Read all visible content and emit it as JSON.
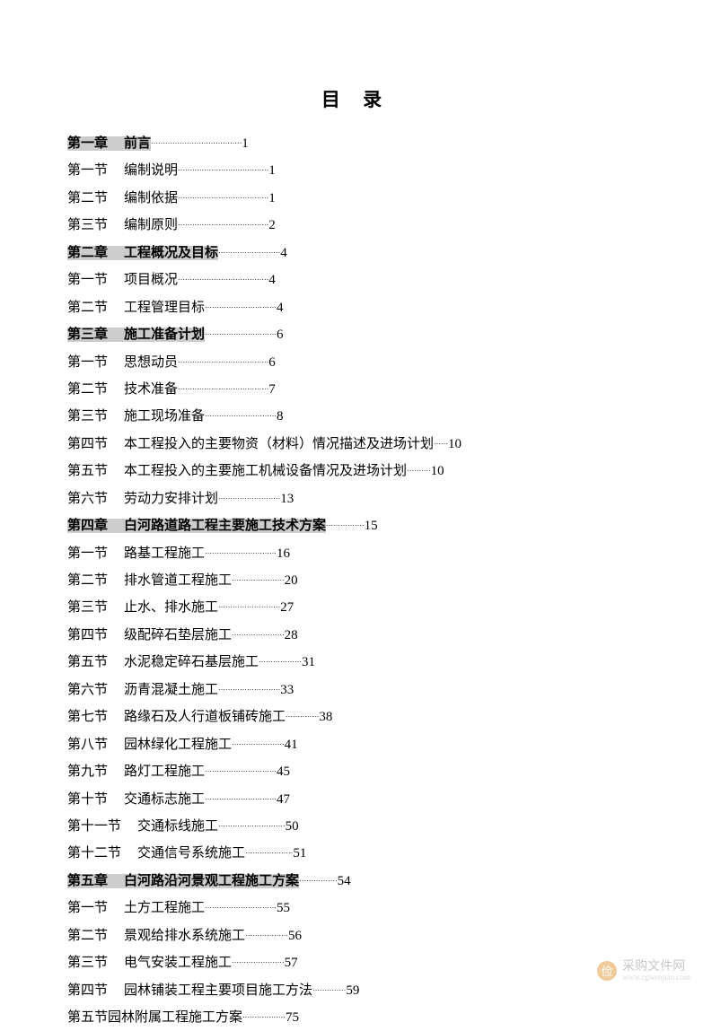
{
  "title": "目 录",
  "colors": {
    "background": "#ffffff",
    "text": "#000000",
    "highlight": "#cccccc",
    "watermark_icon_bg": "#e3a24a",
    "watermark_text": "#9a9a9a"
  },
  "typography": {
    "title_fontsize_pt": 16,
    "body_fontsize_pt": 11,
    "line_height": 2.03,
    "font_family": "SimSun"
  },
  "leader_char": "·",
  "entries": [
    {
      "label": "第一章",
      "title": "前言",
      "page": "1",
      "highlight": true,
      "leader_count": 38,
      "gap_after_label": true
    },
    {
      "label": "第一节",
      "title": "编制说明",
      "page": "1",
      "highlight": false,
      "leader_count": 38,
      "gap_after_label": true
    },
    {
      "label": "第二节",
      "title": "编制依据",
      "page": "1",
      "highlight": false,
      "leader_count": 38,
      "gap_after_label": true
    },
    {
      "label": "第三节",
      "title": "编制原则",
      "page": "2",
      "highlight": false,
      "leader_count": 38,
      "gap_after_label": true
    },
    {
      "label": "第二章",
      "title": "工程概况及目标",
      "page": "4",
      "highlight": true,
      "leader_count": 26,
      "gap_after_label": true
    },
    {
      "label": "第一节",
      "title": "项目概况",
      "page": "4",
      "highlight": false,
      "leader_count": 38,
      "gap_after_label": true
    },
    {
      "label": "第二节",
      "title": "工程管理目标",
      "page": "4",
      "highlight": false,
      "leader_count": 30,
      "gap_after_label": true
    },
    {
      "label": "第三章",
      "title": "施工准备计划",
      "page": "6",
      "highlight": true,
      "leader_count": 30,
      "gap_after_label": true
    },
    {
      "label": "第一节",
      "title": "思想动员",
      "page": "6",
      "highlight": false,
      "leader_count": 38,
      "gap_after_label": true
    },
    {
      "label": "第二节",
      "title": "技术准备",
      "page": "7",
      "highlight": false,
      "leader_count": 38,
      "gap_after_label": true
    },
    {
      "label": "第三节",
      "title": "施工现场准备",
      "page": "8",
      "highlight": false,
      "leader_count": 30,
      "gap_after_label": true
    },
    {
      "label": "第四节",
      "title": "本工程投入的主要物资（材料）情况描述及进场计划",
      "page": "10",
      "highlight": false,
      "leader_count": 6,
      "gap_after_label": true
    },
    {
      "label": "第五节",
      "title": "本工程投入的主要施工机械设备情况及进场计划",
      "page": "10",
      "highlight": false,
      "leader_count": 10,
      "gap_after_label": true
    },
    {
      "label": "第六节",
      "title": "劳动力安排计划",
      "page": "13",
      "highlight": false,
      "leader_count": 26,
      "gap_after_label": true
    },
    {
      "label": "第四章",
      "title": "白河路道路工程主要施工技术方案",
      "page": "15",
      "highlight": true,
      "leader_count": 16,
      "gap_after_label": true
    },
    {
      "label": "第一节",
      "title": "路基工程施工",
      "page": "16",
      "highlight": false,
      "leader_count": 30,
      "gap_after_label": true
    },
    {
      "label": "第二节",
      "title": "排水管道工程施工",
      "page": "20",
      "highlight": false,
      "leader_count": 22,
      "gap_after_label": true
    },
    {
      "label": "第三节",
      "title": "止水、排水施工",
      "page": "27",
      "highlight": false,
      "leader_count": 26,
      "gap_after_label": true
    },
    {
      "label": "第四节",
      "title": "级配碎石垫层施工",
      "page": "28",
      "highlight": false,
      "leader_count": 22,
      "gap_after_label": true
    },
    {
      "label": "第五节",
      "title": "水泥稳定碎石基层施工",
      "page": "31",
      "highlight": false,
      "leader_count": 18,
      "gap_after_label": true
    },
    {
      "label": "第六节",
      "title": "沥青混凝土施工",
      "page": "33",
      "highlight": false,
      "leader_count": 26,
      "gap_after_label": true
    },
    {
      "label": "第七节",
      "title": "路缘石及人行道板铺砖施工",
      "page": "38",
      "highlight": false,
      "leader_count": 14,
      "gap_after_label": true
    },
    {
      "label": "第八节",
      "title": "园林绿化工程施工",
      "page": "41",
      "highlight": false,
      "leader_count": 22,
      "gap_after_label": true
    },
    {
      "label": "第九节",
      "title": "路灯工程施工",
      "page": "45",
      "highlight": false,
      "leader_count": 30,
      "gap_after_label": true
    },
    {
      "label": "第十节",
      "title": "交通标志施工",
      "page": "47",
      "highlight": false,
      "leader_count": 30,
      "gap_after_label": true
    },
    {
      "label": "第十一节",
      "title": "交通标线施工",
      "page": "50",
      "highlight": false,
      "leader_count": 28,
      "gap_after_label": true
    },
    {
      "label": "第十二节",
      "title": "交通信号系统施工",
      "page": "51",
      "highlight": false,
      "leader_count": 20,
      "gap_after_label": true
    },
    {
      "label": "第五章",
      "title": "白河路沿河景观工程施工方案",
      "page": "54",
      "highlight": true,
      "leader_count": 16,
      "gap_after_label": true
    },
    {
      "label": "第一节",
      "title": "土方工程施工",
      "page": "55",
      "highlight": false,
      "leader_count": 30,
      "gap_after_label": true
    },
    {
      "label": "第二节",
      "title": "景观给排水系统施工",
      "page": "56",
      "highlight": false,
      "leader_count": 18,
      "gap_after_label": true
    },
    {
      "label": "第三节",
      "title": "电气安装工程施工",
      "page": "57",
      "highlight": false,
      "leader_count": 22,
      "gap_after_label": true
    },
    {
      "label": "第四节",
      "title": "园林铺装工程主要项目施工方法",
      "page": "59",
      "highlight": false,
      "leader_count": 14,
      "gap_after_label": true
    },
    {
      "label": "第五节",
      "title": "园林附属工程施工方案",
      "page": "75",
      "highlight": false,
      "leader_count": 18,
      "gap_after_label": false
    }
  ],
  "watermark": {
    "icon_text": "俭",
    "main": "采购文件网",
    "sub": "www.cgwenjian.com"
  }
}
